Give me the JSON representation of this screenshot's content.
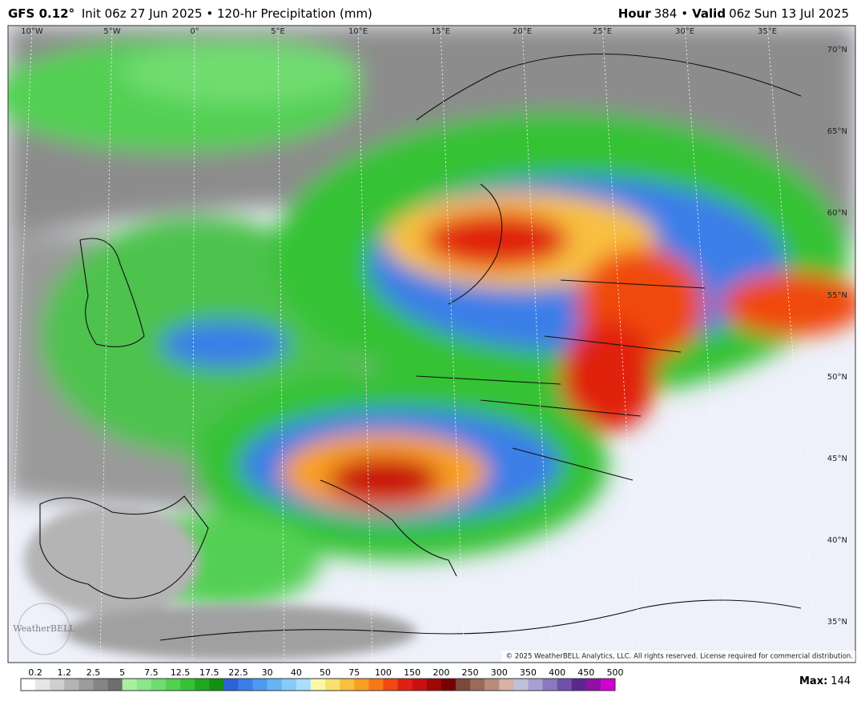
{
  "header": {
    "model": "GFS 0.12°",
    "description": "Init 06z 27 Jun 2025 • 120-hr Precipitation (mm)",
    "hour_label": "Hour",
    "hour": "384",
    "separator": "•",
    "valid_label": "Valid",
    "valid": "06z Sun 13 Jul 2025"
  },
  "map": {
    "longitude_labels": [
      "10°W",
      "5°W",
      "0°",
      "5°E",
      "10°E",
      "15°E",
      "20°E",
      "25°E",
      "30°E",
      "35°E"
    ],
    "latitude_labels": [
      "70°N",
      "65°N",
      "60°N",
      "55°N",
      "50°N",
      "45°N",
      "40°N",
      "35°N"
    ],
    "watermark": "WeatherBELL",
    "copyright": "© 2025 WeatherBELL Analytics, LLC. All rights reserved. License required for commercial distribution."
  },
  "legend": {
    "labels": [
      "0.2",
      "1.2",
      "2.5",
      "5",
      "7.5",
      "12.5",
      "17.5",
      "22.5",
      "30",
      "40",
      "50",
      "75",
      "100",
      "150",
      "200",
      "250",
      "300",
      "350",
      "400",
      "450",
      "500"
    ],
    "colors": [
      "#ffffff",
      "#e6e6e6",
      "#cfcfcf",
      "#b4b4b4",
      "#9c9c9c",
      "#858585",
      "#6e6e6e",
      "#a8f0a0",
      "#8ce68a",
      "#6fdc6f",
      "#52d052",
      "#34c234",
      "#1fa81f",
      "#138f13",
      "#2a62d8",
      "#3a7ee8",
      "#4c9af0",
      "#66b4f5",
      "#86ccf8",
      "#a8e0fa",
      "#f8f8a8",
      "#f8e070",
      "#f8c040",
      "#f8a020",
      "#f87818",
      "#f04810",
      "#e02010",
      "#c81010",
      "#a00808",
      "#780000",
      "#7a4a3a",
      "#9a6a5a",
      "#b88c7c",
      "#d8b0a4",
      "#c0c0d8",
      "#a8a0d0",
      "#8c78c0",
      "#7050a8",
      "#5a2890",
      "#9010a8",
      "#d000d0"
    ]
  },
  "footer": {
    "max_label": "Max:",
    "max_value": "144"
  }
}
